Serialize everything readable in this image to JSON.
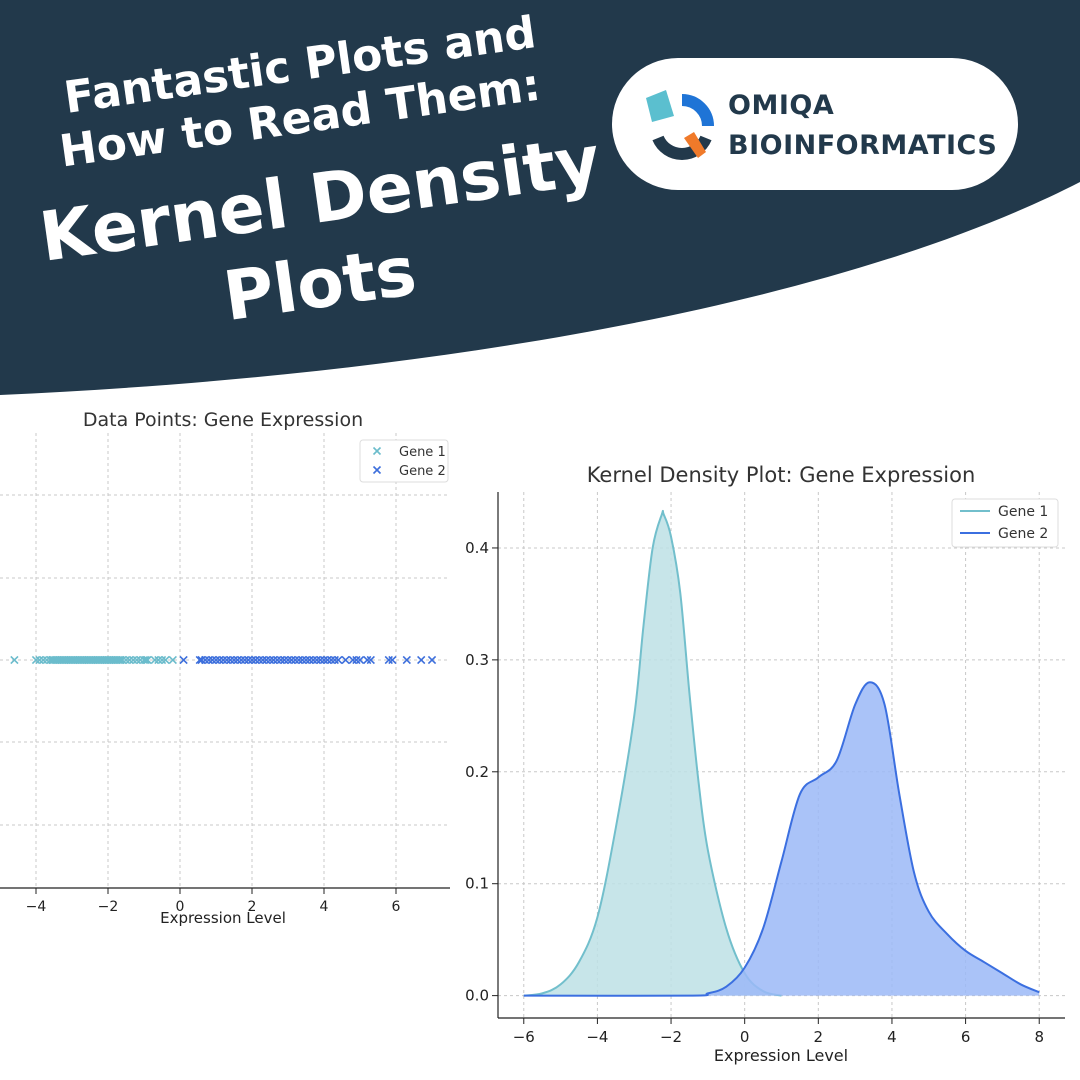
{
  "header": {
    "line1": "Fantastic Plots and",
    "line2": "How to Read Them:",
    "line3": "Kernel Density",
    "line4": "Plots",
    "background_color": "#22394b"
  },
  "logo": {
    "line1": "OMIQA",
    "line2": "BIOINFORMATICS",
    "colors": [
      "#5bbfcf",
      "#1f74d6",
      "#22394b",
      "#f07a2a"
    ]
  },
  "chart_data": [
    {
      "type": "scatter",
      "title": "Data Points: Gene Expression",
      "xlabel": "Expression Level",
      "ylabel": "",
      "xlim": [
        -5,
        7.5
      ],
      "xticks": [
        "−4",
        "−2",
        "0",
        "2",
        "4",
        "6"
      ],
      "grid": true,
      "legend": "top-right",
      "series": [
        {
          "name": "Gene 1",
          "color": "#6bbccc",
          "marker": "x",
          "x": [
            -4.6,
            -4.0,
            -3.9,
            -3.8,
            -3.7,
            -3.6,
            -3.55,
            -3.5,
            -3.45,
            -3.4,
            -3.35,
            -3.3,
            -3.25,
            -3.2,
            -3.15,
            -3.1,
            -3.05,
            -3.0,
            -2.95,
            -2.9,
            -2.85,
            -2.8,
            -2.75,
            -2.7,
            -2.65,
            -2.6,
            -2.55,
            -2.5,
            -2.45,
            -2.4,
            -2.35,
            -2.3,
            -2.25,
            -2.2,
            -2.15,
            -2.1,
            -2.05,
            -2.0,
            -1.95,
            -1.9,
            -1.85,
            -1.8,
            -1.75,
            -1.7,
            -1.65,
            -1.6,
            -1.5,
            -1.4,
            -1.3,
            -1.2,
            -1.1,
            -1.0,
            -0.95,
            -0.9,
            -0.7,
            -0.6,
            -0.5,
            -0.4,
            -0.2
          ]
        },
        {
          "name": "Gene 2",
          "color": "#3d6fdc",
          "marker": "x",
          "x": [
            0.1,
            0.55,
            0.6,
            0.7,
            0.8,
            0.9,
            1.0,
            1.1,
            1.2,
            1.3,
            1.4,
            1.5,
            1.6,
            1.7,
            1.8,
            1.9,
            2.0,
            2.1,
            2.2,
            2.3,
            2.4,
            2.5,
            2.6,
            2.7,
            2.8,
            2.9,
            3.0,
            3.1,
            3.2,
            3.3,
            3.4,
            3.5,
            3.6,
            3.7,
            3.8,
            3.9,
            4.0,
            4.1,
            4.2,
            4.3,
            4.4,
            4.6,
            4.8,
            4.9,
            5.0,
            5.2,
            5.3,
            5.8,
            5.9,
            6.3,
            6.7,
            7.0
          ]
        }
      ]
    },
    {
      "type": "area",
      "title": "Kernel Density Plot: Gene Expression",
      "xlabel": "Expression Level",
      "ylabel": "",
      "xlim": [
        -6.7,
        8.7
      ],
      "ylim": [
        -0.02,
        0.45
      ],
      "xticks": [
        "−6",
        "−4",
        "−2",
        "0",
        "2",
        "4",
        "6",
        "8"
      ],
      "xtick_values": [
        -6,
        -4,
        -2,
        0,
        2,
        4,
        6,
        8
      ],
      "yticks": [
        "0.0",
        "0.1",
        "0.2",
        "0.3",
        "0.4"
      ],
      "ytick_values": [
        0,
        0.1,
        0.2,
        0.3,
        0.4
      ],
      "grid": true,
      "legend": "top-right",
      "series": [
        {
          "name": "Gene 1",
          "color": "#72bfcc",
          "fill": "#bde0e5",
          "x": [
            -6,
            -5.5,
            -5,
            -4.5,
            -4,
            -3.5,
            -3,
            -2.75,
            -2.5,
            -2.25,
            -2.2,
            -2.0,
            -1.75,
            -1.5,
            -1.25,
            -1.0,
            -0.5,
            0,
            0.5,
            1
          ],
          "y": [
            0,
            0.002,
            0.01,
            0.03,
            0.07,
            0.15,
            0.25,
            0.33,
            0.4,
            0.43,
            0.43,
            0.41,
            0.36,
            0.27,
            0.19,
            0.13,
            0.06,
            0.02,
            0.004,
            0
          ]
        },
        {
          "name": "Gene 2",
          "color": "#3b6fe0",
          "fill": "#9bb8f7",
          "x": [
            -6,
            -1.5,
            -1,
            -0.5,
            0,
            0.5,
            1,
            1.5,
            2,
            2.5,
            3,
            3.4,
            3.8,
            4.2,
            4.6,
            5,
            5.5,
            6,
            6.5,
            7,
            7.5,
            8
          ],
          "y": [
            0,
            0,
            0.002,
            0.008,
            0.025,
            0.06,
            0.12,
            0.18,
            0.195,
            0.21,
            0.26,
            0.28,
            0.26,
            0.18,
            0.11,
            0.075,
            0.055,
            0.04,
            0.03,
            0.02,
            0.01,
            0.003
          ]
        }
      ]
    }
  ]
}
